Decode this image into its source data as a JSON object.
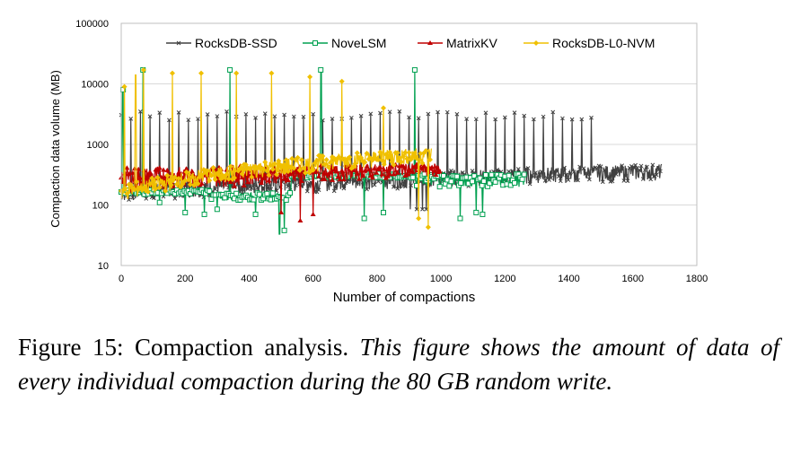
{
  "chart_data": {
    "type": "line",
    "title": "",
    "xlabel": "Number of compactions",
    "ylabel": "Compaction data volume (MB)",
    "xlim": [
      0,
      1800
    ],
    "ylim": [
      10,
      100000
    ],
    "yscale": "log",
    "x_ticks": [
      "0",
      "200",
      "400",
      "600",
      "800",
      "1000",
      "1200",
      "1400",
      "1600",
      "1800"
    ],
    "y_ticks": [
      "10",
      "100",
      "1000",
      "10000",
      "100000"
    ],
    "x_tick_values": [
      0,
      200,
      400,
      600,
      800,
      1000,
      1200,
      1400,
      1600,
      1800
    ],
    "y_tick_values": [
      10,
      100,
      1000,
      10000,
      100000
    ],
    "legend_position": "top",
    "series": [
      {
        "name": "RocksDB-SSD",
        "color": "#404040",
        "marker": "x",
        "x_range": [
          0,
          1690
        ],
        "baseline_start": 150,
        "baseline_end": 340,
        "spike_every": 15,
        "spike_values": [
          2500,
          3500
        ],
        "spike_until": 1480,
        "dip_value": 85
      },
      {
        "name": "NoveLSM",
        "color": "#00a050",
        "marker": "square",
        "x_range": [
          0,
          1260
        ],
        "segments": [
          [
            0,
            280,
            150,
            180
          ],
          [
            280,
            530,
            120,
            160
          ],
          [
            530,
            920,
            280,
            330
          ],
          [
            920,
            1260,
            200,
            330
          ]
        ],
        "spikes": [
          [
            5,
            8000
          ],
          [
            68,
            17000
          ],
          [
            340,
            17000
          ],
          [
            625,
            17000
          ],
          [
            918,
            17000
          ]
        ],
        "dips": [
          [
            120,
            110
          ],
          [
            200,
            75
          ],
          [
            260,
            70
          ],
          [
            300,
            85
          ],
          [
            420,
            70
          ],
          [
            495,
            33
          ],
          [
            510,
            38
          ],
          [
            760,
            60
          ],
          [
            820,
            75
          ],
          [
            1060,
            60
          ],
          [
            1110,
            75
          ],
          [
            1130,
            70
          ]
        ]
      },
      {
        "name": "MatrixKV",
        "color": "#c00000",
        "marker": "triangle",
        "x_range": [
          0,
          1000
        ],
        "baseline_start": 200,
        "baseline_end": 400,
        "band_high": 550,
        "dips": [
          [
            500,
            75
          ],
          [
            560,
            55
          ],
          [
            600,
            70
          ]
        ]
      },
      {
        "name": "RocksDB-L0-NVM",
        "color": "#f0c000",
        "marker": "diamond",
        "x_range": [
          0,
          970
        ],
        "baseline_start": 150,
        "baseline_end": 650,
        "spikes": [
          [
            10,
            9000
          ],
          [
            45,
            14000
          ],
          [
            70,
            17000
          ],
          [
            160,
            15000
          ],
          [
            250,
            15000
          ],
          [
            360,
            15000
          ],
          [
            470,
            15000
          ],
          [
            590,
            13000
          ],
          [
            690,
            11000
          ],
          [
            820,
            4000
          ]
        ],
        "dips": [
          [
            960,
            43
          ],
          [
            930,
            60
          ]
        ]
      }
    ]
  },
  "caption": {
    "prefix": "Figure 15: Compaction analysis.",
    "italic": "This figure shows the amount of data of every individual compaction during the 80 GB random write."
  }
}
